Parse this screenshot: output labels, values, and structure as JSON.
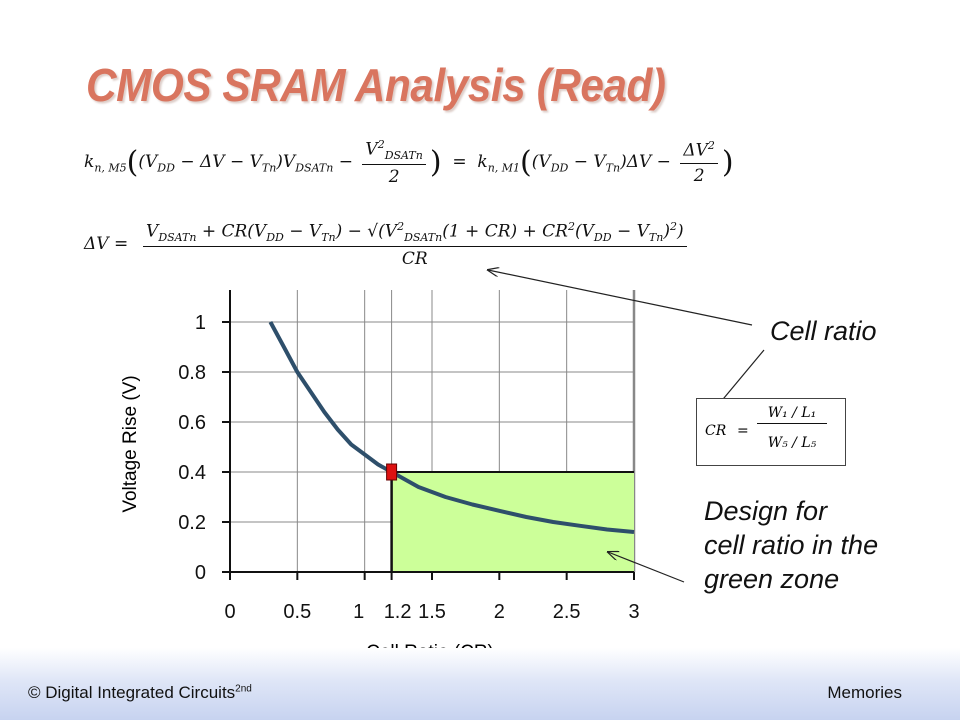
{
  "slide": {
    "title": "CMOS SRAM Analysis (Read)",
    "footer_left": "© Digital Integrated Circuits",
    "footer_left_sup": "2nd",
    "footer_right": "Memories"
  },
  "equations": {
    "eq1_k_left": "k",
    "eq1_k_left_sub": "n, M5",
    "eq1_k_right": "k",
    "eq1_k_right_sub": "n, M1",
    "eq2_lhs": "ΔV",
    "eq2_den": "CR"
  },
  "annotations": {
    "cell_ratio": "Cell ratio",
    "design_line1": "Design for",
    "design_line2": "cell ratio in the",
    "design_line3": "green zone"
  },
  "cr_formula": {
    "lhs": "CR",
    "eq": "=",
    "num": "W₁ / L₁",
    "den": "W₅ / L₅"
  },
  "colors": {
    "title": "#d9755f",
    "curve": "#2e4f6b",
    "green_zone": "#ccff99",
    "marker": "#dd1111"
  },
  "chart_data": {
    "type": "line",
    "xlabel": "Cell Ratio (CR)",
    "ylabel": "Voltage Rise (V)",
    "xlim": [
      0,
      3
    ],
    "ylim": [
      0,
      1.1
    ],
    "x_ticks": [
      "0",
      "0.5",
      "1",
      "1.2",
      "1.5",
      "2",
      "2.5",
      "3"
    ],
    "x_tick_values": [
      0,
      0.5,
      1,
      1.2,
      1.5,
      2,
      2.5,
      3
    ],
    "y_ticks": [
      "0",
      "0.2",
      "0.4",
      "0.6",
      "0.8",
      "1"
    ],
    "y_tick_values": [
      0,
      0.2,
      0.4,
      0.6,
      0.8,
      1
    ],
    "grid": "vertical and horizontal",
    "series": [
      {
        "x": [
          0.3,
          0.4,
          0.5,
          0.6,
          0.7,
          0.8,
          0.9,
          1.0,
          1.1,
          1.2,
          1.4,
          1.6,
          1.8,
          2.0,
          2.2,
          2.4,
          2.6,
          2.8,
          3.0
        ],
        "values": [
          1.0,
          0.9,
          0.8,
          0.72,
          0.64,
          0.57,
          0.51,
          0.47,
          0.43,
          0.4,
          0.34,
          0.3,
          0.27,
          0.245,
          0.22,
          0.2,
          0.185,
          0.17,
          0.16
        ]
      }
    ],
    "highlight_region": {
      "x_from": 1.2,
      "x_to": 3,
      "y_from": 0,
      "y_to": 0.4
    },
    "marker_point": {
      "x": 1.2,
      "y": 0.4
    }
  }
}
